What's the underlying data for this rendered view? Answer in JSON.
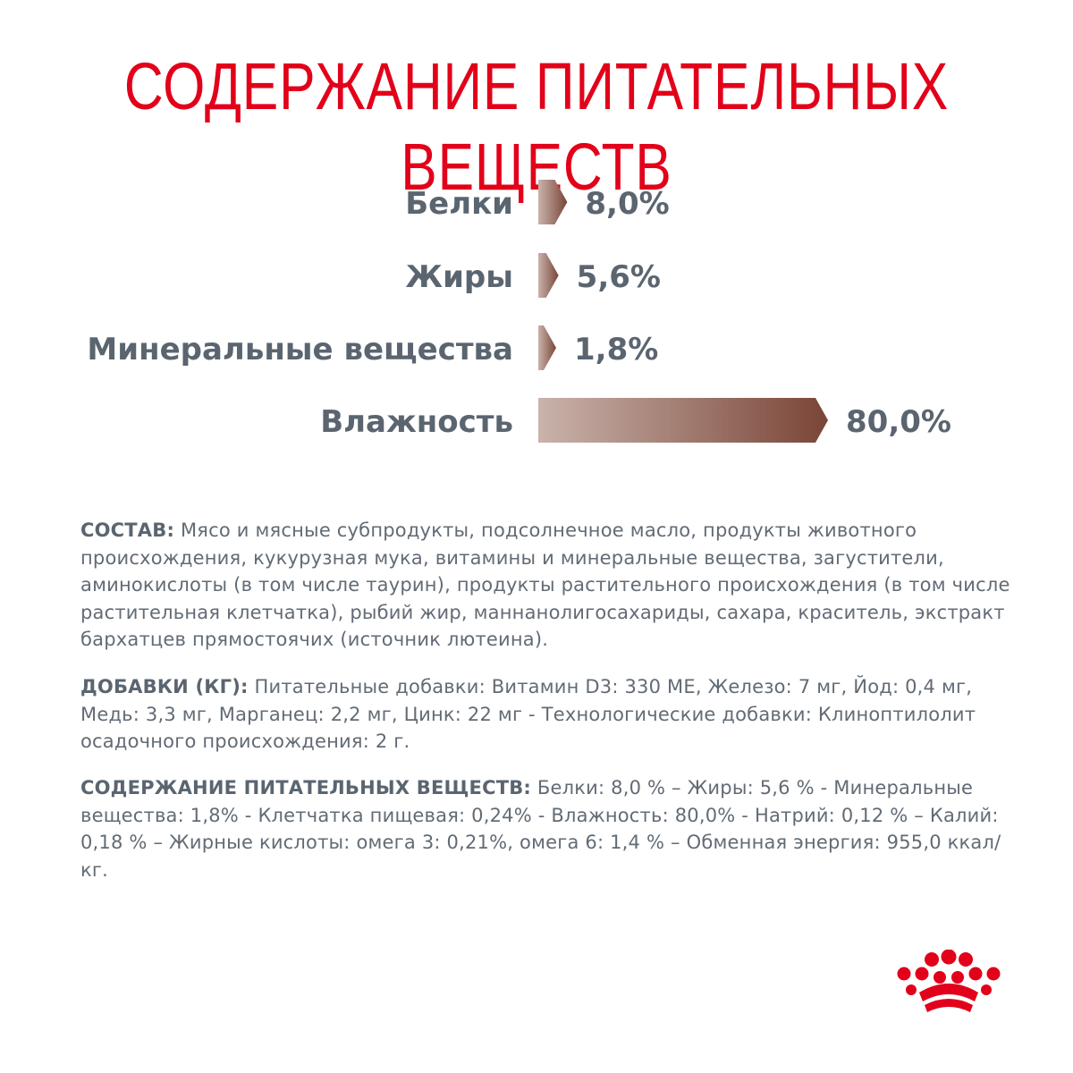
{
  "title": "СОДЕРЖАНИЕ ПИТАТЕЛЬНЫХ ВЕЩЕСТВ",
  "colors": {
    "title": "#e2001a",
    "label_text": "#5a6570",
    "body_text": "#626b75",
    "bar_gradient_start": "#c9b3ab",
    "bar_gradient_end": "#7a4537",
    "logo": "#e2001a"
  },
  "chart_data": {
    "type": "bar",
    "orientation": "horizontal",
    "categories": [
      "Белки",
      "Жиры",
      "Минеральные вещества",
      "Влажность"
    ],
    "values": [
      8.0,
      5.6,
      1.8,
      80.0
    ],
    "value_labels": [
      "8,0%",
      "5,6%",
      "1,8%",
      "80,0%"
    ],
    "unit": "%",
    "title": "СОДЕРЖАНИЕ ПИТАТЕЛЬНЫХ ВЕЩЕСТВ",
    "grid": false,
    "legend": "none"
  },
  "composition": {
    "label": "СОСТАВ:",
    "text": " Мясо и мясные субпродукты, подсолнечное масло, продукты животного происхождения, кукурузная мука, витамины и минеральные вещества,  загустители, аминокислоты (в том числе таурин), продукты растительного происхождения (в том числе растительная клетчатка), рыбий жир,  маннанолигосахариды, сахара, краситель, экстракт бархатцев прямостоячих (источник лютеина)."
  },
  "additives": {
    "label": "ДОБАВКИ (КГ):",
    "text": " Питательные добавки: Витамин D3: 330 МЕ, Железо: 7 мг, Йод: 0,4 мг, Медь: 3,3 мг, Марганец: 2,2 мг, Цинк: 22 мг - Технологические добавки: Клиноптилолит осадочного происхождения: 2 г."
  },
  "nutrients": {
    "label": "СОДЕРЖАНИЕ ПИТАТЕЛЬНЫХ ВЕЩЕСТВ:",
    "text": " Белки: 8,0 % – Жиры: 5,6 % - Минеральные вещества: 1,8% - Клетчатка пищевая: 0,24% - Влажность: 80,0% - Натрий: 0,12 % – Калий: 0,18 % – Жирные кислоты: омега 3: 0,21%, омега 6: 1,4 % – Обменная энергия: 955,0 ккал/кг."
  },
  "logo": {
    "icon": "royal-crown-icon"
  }
}
